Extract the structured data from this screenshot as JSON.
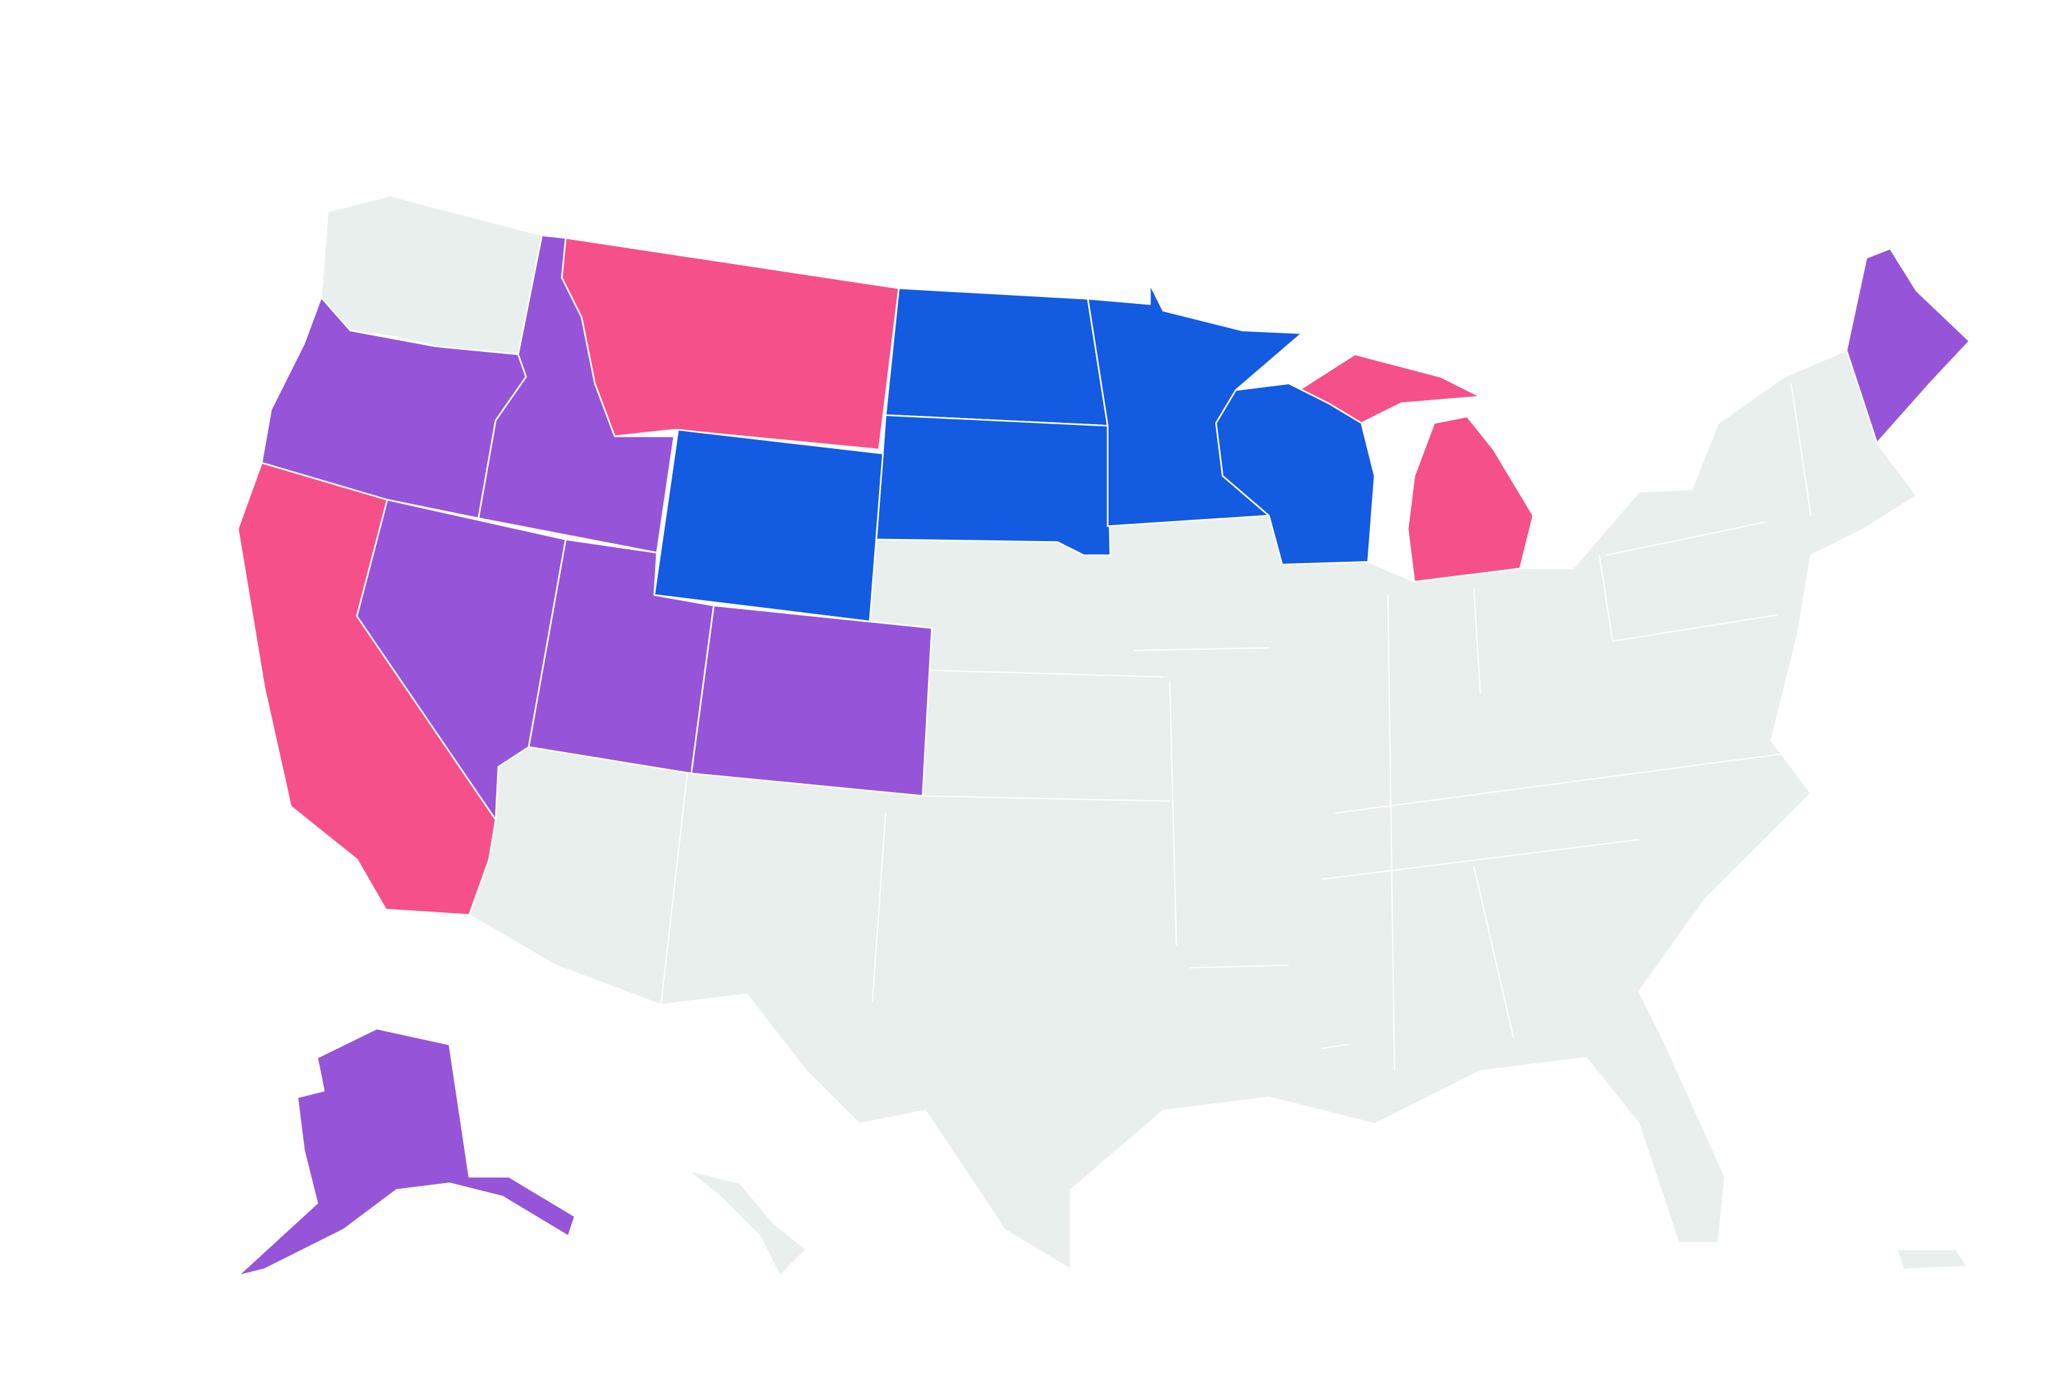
{
  "map": {
    "palette": [
      "#f5508a",
      "#9654d8",
      "#135be0",
      "#e9efec"
    ],
    "border": "#ffffff",
    "background": "#ffffff"
  }
}
